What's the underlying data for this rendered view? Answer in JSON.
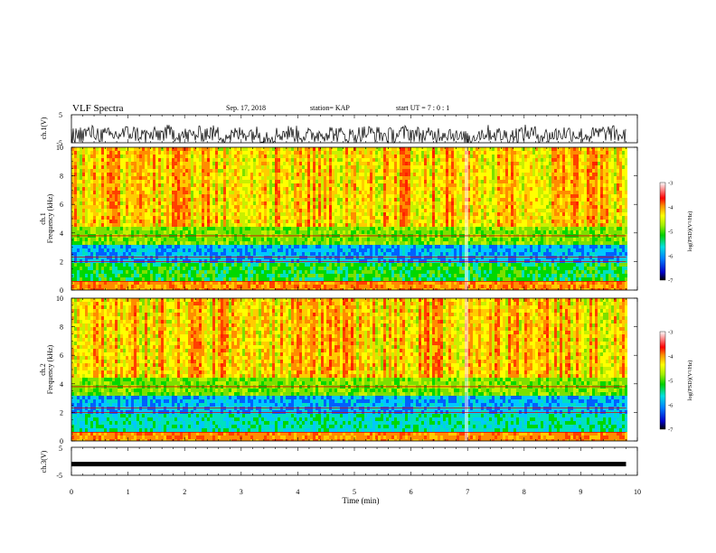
{
  "header": {
    "title": "VLF Spectra",
    "date": "Sep. 17, 2018",
    "station": "station= KAP",
    "start": "start  UT  =   7 : 0  : 1"
  },
  "chart_data": [
    {
      "type": "line",
      "title": "",
      "ylabel": "ch.1(V)",
      "ylim": [
        -5,
        5
      ],
      "yticks": [
        "5",
        "-5"
      ],
      "xlim": [
        0,
        10
      ],
      "grid": false,
      "description_values": "noisy waveform around -2 V between 0 and 9.8 min"
    },
    {
      "type": "heatmap",
      "ylabel_line1": "ch.1",
      "ylabel_line2": "Frequency  (kHz)",
      "ylim": [
        0,
        10
      ],
      "yticks": [
        "0",
        "2",
        "4",
        "6",
        "8",
        "10"
      ],
      "xlim": [
        0,
        10
      ],
      "data_end_min": 9.8,
      "colorbar": {
        "label": "log(PSD)(V²/Hz)",
        "range": [
          -7,
          -3
        ],
        "ticks": [
          "-3",
          "-4",
          "-5",
          "-6",
          "-7"
        ]
      }
    },
    {
      "type": "heatmap",
      "ylabel_line1": "ch.2",
      "ylabel_line2": "Frequency  (kHz)",
      "ylim": [
        0,
        10
      ],
      "yticks": [
        "0",
        "2",
        "4",
        "6",
        "8",
        "10"
      ],
      "xlim": [
        0,
        10
      ],
      "data_end_min": 9.8,
      "colorbar": {
        "label": "log(PSD)(V²/Hz)",
        "range": [
          -7,
          -3
        ],
        "ticks": [
          "-3",
          "-4",
          "-5",
          "-6",
          "-7"
        ]
      }
    },
    {
      "type": "line",
      "ylabel": "ch.3(V)",
      "ylim": [
        -5,
        5
      ],
      "yticks": [
        "5",
        "-5"
      ],
      "xlim": [
        0,
        10
      ],
      "values": {
        "x": [
          0,
          9.8
        ],
        "y": [
          -1,
          -1
        ]
      },
      "xlabel": "Time  (min)",
      "xticks": [
        "0",
        "1",
        "2",
        "3",
        "4",
        "5",
        "6",
        "7",
        "8",
        "9",
        "10"
      ]
    }
  ]
}
